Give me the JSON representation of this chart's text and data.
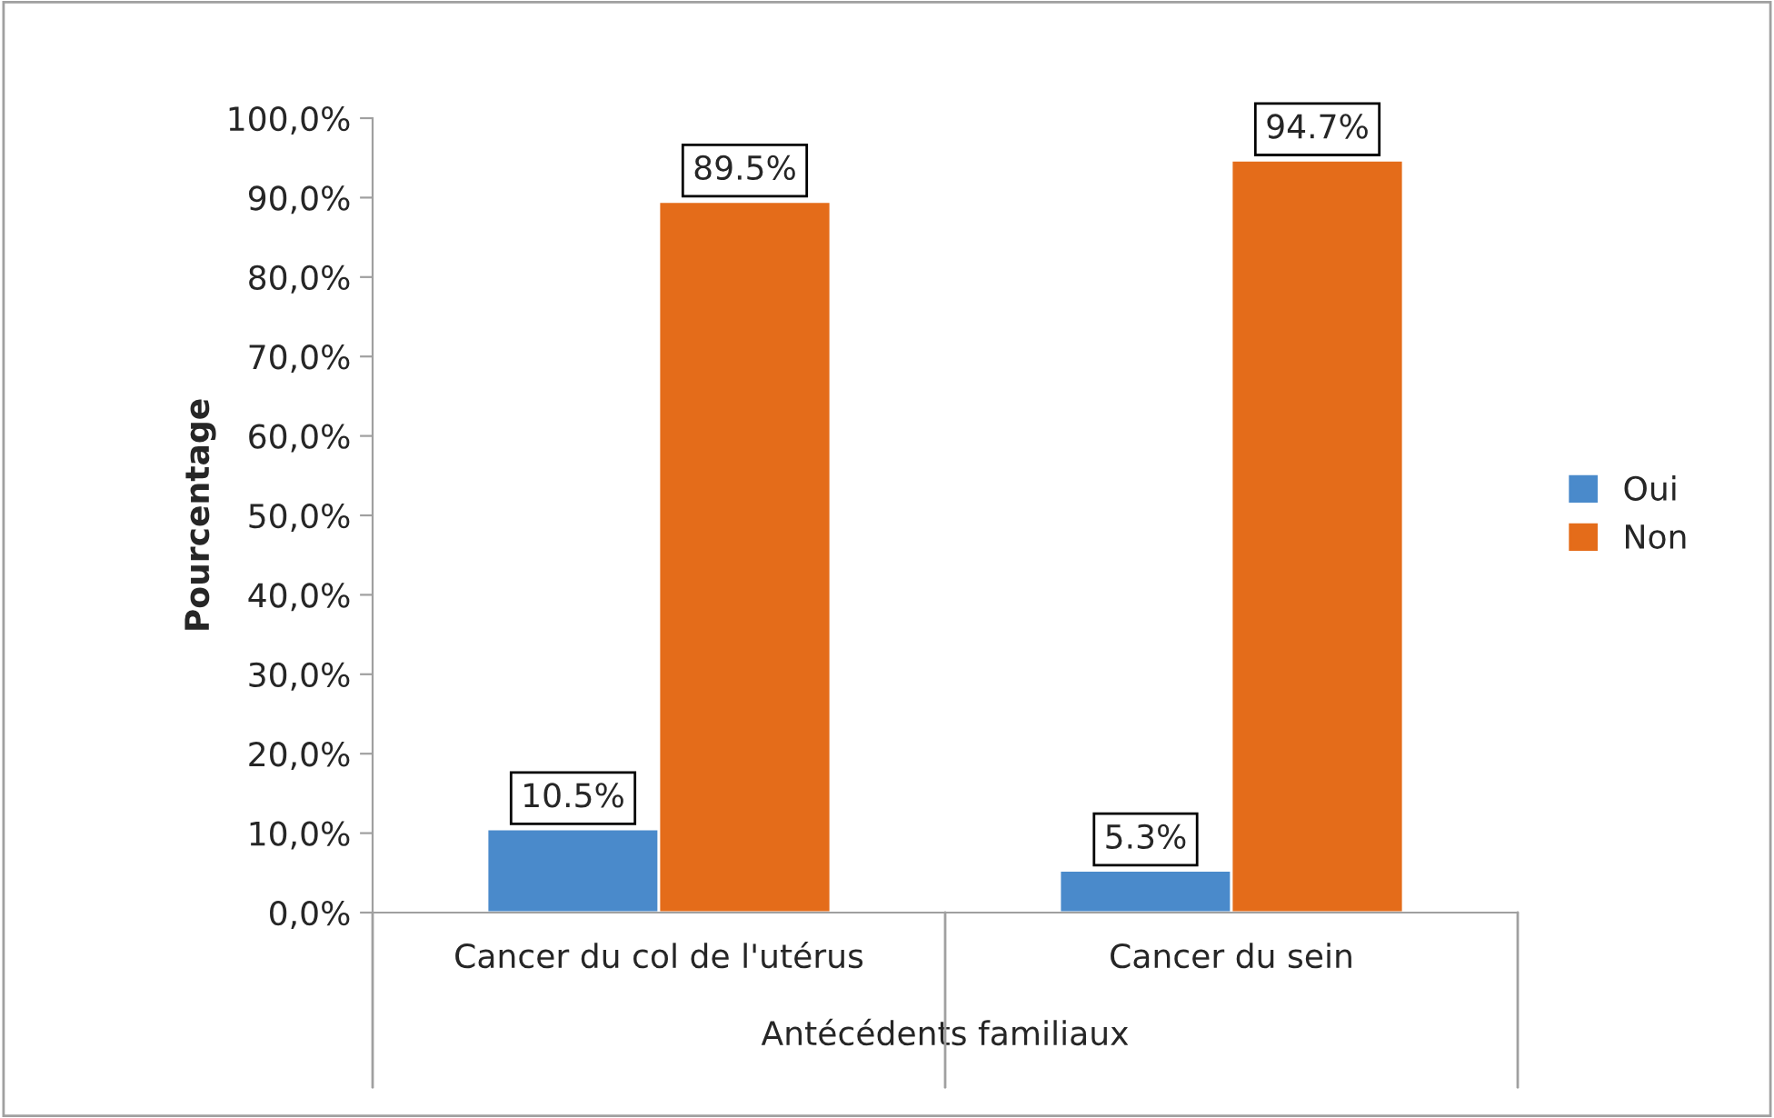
{
  "chart_data": {
    "type": "bar",
    "xlabel": "Antécédents familiaux",
    "ylabel": "Pourcentage",
    "categories": [
      "Cancer du col de l'utérus",
      "Cancer du sein"
    ],
    "series": [
      {
        "name": "Oui",
        "color": "#4a8acb",
        "values": [
          10.5,
          5.3
        ],
        "value_labels": [
          "10.5%",
          "5.3%"
        ]
      },
      {
        "name": "Non",
        "color": "#e46c1a",
        "values": [
          89.5,
          94.7
        ],
        "value_labels": [
          "89.5%",
          "94.7%"
        ]
      }
    ],
    "ylim": [
      0,
      100
    ],
    "yticks": [
      {
        "value": 0,
        "label": "0,0%"
      },
      {
        "value": 10,
        "label": "10,0%"
      },
      {
        "value": 20,
        "label": "20,0%"
      },
      {
        "value": 30,
        "label": "30,0%"
      },
      {
        "value": 40,
        "label": "40,0%"
      },
      {
        "value": 50,
        "label": "50,0%"
      },
      {
        "value": 60,
        "label": "60,0%"
      },
      {
        "value": 70,
        "label": "70,0%"
      },
      {
        "value": 80,
        "label": "80,0%"
      },
      {
        "value": 90,
        "label": "90,0%"
      },
      {
        "value": 100,
        "label": "100,0%"
      }
    ],
    "grid": false,
    "legend": "right"
  }
}
